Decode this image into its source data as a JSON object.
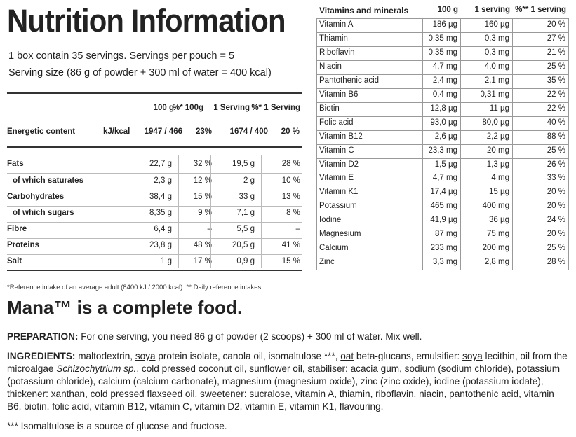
{
  "title": "Nutrition Information",
  "intro": {
    "line1": "1 box contain 35 servings. Servings per pouch = 5",
    "line2": "Serving size (86 g of powder + 300 ml of water = 400 kcal)"
  },
  "nutrition": {
    "headers": [
      "100 g",
      "%* 100g",
      "1 Serving",
      "%* 1 Serving"
    ],
    "energy": {
      "label": "Energetic content",
      "unit": "kJ/kcal",
      "per100": "1947 / 466",
      "pct100": "23%",
      "serving": "1674 / 400",
      "pctServing": "20 %"
    },
    "rows": [
      {
        "label": "Fats",
        "bold": true,
        "per100": "22,7 g",
        "pct100": "32 %",
        "serving": "19,5 g",
        "pctServing": "28 %"
      },
      {
        "label": "of which saturates",
        "bold": false,
        "per100": "2,3 g",
        "pct100": "12 %",
        "serving": "2 g",
        "pctServing": "10 %"
      },
      {
        "label": "Carbohydrates",
        "bold": true,
        "per100": "38,4 g",
        "pct100": "15 %",
        "serving": "33 g",
        "pctServing": "13 %"
      },
      {
        "label": "of which sugars",
        "bold": false,
        "per100": "8,35 g",
        "pct100": "9 %",
        "serving": "7,1 g",
        "pctServing": "8 %"
      },
      {
        "label": "Fibre",
        "bold": true,
        "per100": "6,4 g",
        "pct100": "–",
        "serving": "5,5 g",
        "pctServing": "–"
      },
      {
        "label": "Proteins",
        "bold": true,
        "per100": "23,8 g",
        "pct100": "48 %",
        "serving": "20,5 g",
        "pctServing": "41 %"
      },
      {
        "label": "Salt",
        "bold": true,
        "per100": "1 g",
        "pct100": "17 %",
        "serving": "0,9 g",
        "pctServing": "15 %"
      }
    ]
  },
  "vitamins": {
    "headers": [
      "Vitamins and minerals",
      "100 g",
      "1 serving",
      "%** 1 serving"
    ],
    "rows": [
      [
        "Vitamin A",
        "186 µg",
        "160 µg",
        "20 %"
      ],
      [
        "Thiamin",
        "0,35 mg",
        "0,3 mg",
        "27 %"
      ],
      [
        "Riboflavin",
        "0,35 mg",
        "0,3 mg",
        "21 %"
      ],
      [
        "Niacin",
        "4,7 mg",
        "4,0 mg",
        "25 %"
      ],
      [
        "Pantothenic acid",
        "2,4 mg",
        "2,1 mg",
        "35 %"
      ],
      [
        "Vitamin B6",
        "0,4 mg",
        "0,31 mg",
        "22 %"
      ],
      [
        "Biotin",
        "12,8 µg",
        "11 µg",
        "22 %"
      ],
      [
        "Folic acid",
        "93,0 µg",
        "80,0 µg",
        "40 %"
      ],
      [
        "Vitamin B12",
        "2,6 µg",
        "2,2 µg",
        "88 %"
      ],
      [
        "Vitamin C",
        "23,3 mg",
        "20 mg",
        "25 %"
      ],
      [
        "Vitamin D2",
        "1,5 µg",
        "1,3 µg",
        "26 %"
      ],
      [
        "Vitamin E",
        "4,7 mg",
        "4 mg",
        "33 %"
      ],
      [
        "Vitamin K1",
        "17,4 µg",
        "15 µg",
        "20 %"
      ],
      [
        "Potassium",
        "465 mg",
        "400 mg",
        "20 %"
      ],
      [
        "Iodine",
        "41,9 µg",
        "36 µg",
        "24 %"
      ],
      [
        "Magnesium",
        "87 mg",
        "75 mg",
        "20 %"
      ],
      [
        "Calcium",
        "233 mg",
        "200 mg",
        "25 %"
      ],
      [
        "Zinc",
        "3,3 mg",
        "2,8 mg",
        "28 %"
      ]
    ]
  },
  "footnote": "*Reference intake of an average adult (8400 kJ / 2000 kcal). ** Daily reference intakes",
  "mana_heading": "Mana™ is a complete food.",
  "preparation": {
    "label": "PREPARATION:",
    "text": " For one serving, you need 86 g of powder (2 scoops) + 300 ml of water. Mix well."
  },
  "ingredients": {
    "label": "INGREDIENTS:",
    "p1": " maltodextrin, ",
    "soya1": "soya",
    "p2": " protein isolate, canola oil, isomaltulose ***, ",
    "oat": "oat",
    "p3": " beta-glucans, emulsifier: ",
    "soya2": "soya",
    "p4": " lecithin, oil from the microalgae ",
    "schizo": "Schizochytrium sp.",
    "p5": ", cold pressed coconut oil, sunflower oil, stabiliser: acacia gum, sodium (sodium chloride), potassium (potassium chloride), calcium (calcium carbonate), magnesium (magnesium oxide), zinc  (zinc oxide), iodine (potassium iodate), thickener: xanthan, cold pressed flaxseed oil, sweetener: sucralose, vitamin A, thiamin, riboflavin, niacin, pantothenic acid, vitamin B6, biotin, folic acid, vitamin B12, vitamin C, vitamin D2, vitamin E, vitamin K1, flavouring."
  },
  "isomaltulose_note": "*** Isomaltulose is a source of glucose and fructose."
}
